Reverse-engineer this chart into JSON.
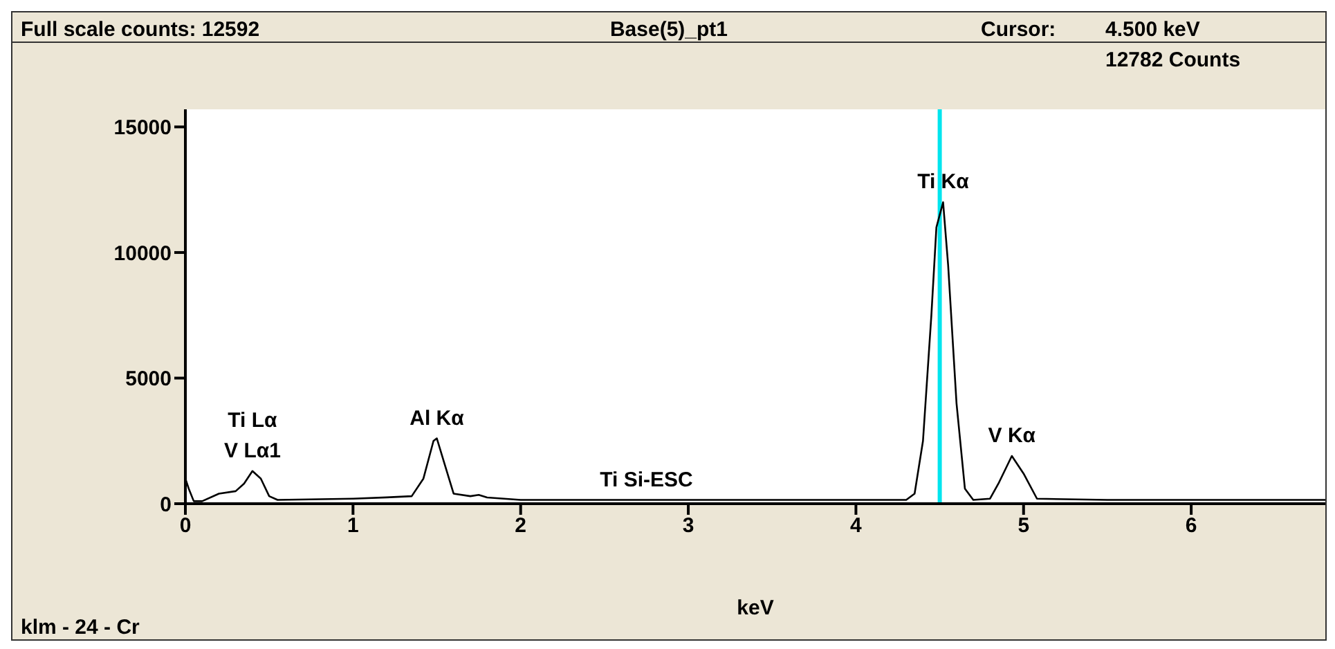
{
  "chart_data": {
    "type": "line",
    "title": "Base(5)_pt1",
    "xlabel": "keV",
    "x": [
      0,
      0.02,
      0.05,
      0.1,
      0.2,
      0.3,
      0.35,
      0.4,
      0.45,
      0.5,
      0.55,
      1.0,
      1.2,
      1.35,
      1.42,
      1.48,
      1.5,
      1.55,
      1.6,
      1.7,
      1.75,
      1.8,
      2.0,
      2.5,
      3.0,
      4.3,
      4.35,
      4.4,
      4.45,
      4.48,
      4.52,
      4.55,
      4.6,
      4.65,
      4.7,
      4.8,
      4.85,
      4.93,
      5.0,
      5.08,
      5.5,
      6.8
    ],
    "series": [
      {
        "color": "#000000",
        "values": [
          1000,
          600,
          100,
          100,
          400,
          500,
          800,
          1300,
          1000,
          300,
          150,
          200,
          250,
          300,
          1000,
          2500,
          2600,
          1500,
          400,
          300,
          350,
          250,
          150,
          150,
          150,
          150,
          400,
          2500,
          7500,
          11000,
          12000,
          9500,
          4000,
          600,
          150,
          200,
          800,
          1900,
          1200,
          200,
          150,
          150
        ]
      }
    ],
    "xlim": [
      0,
      6.8
    ],
    "xticks": [
      0,
      1,
      2,
      3,
      4,
      5,
      6
    ],
    "ylim": [
      0,
      15700
    ],
    "yticks": [
      0,
      5000,
      10000,
      15000
    ],
    "ref_lines": [
      {
        "axis": "x",
        "value": 4.5,
        "color": "#00e5ee"
      }
    ],
    "annotations": [
      "Full scale counts: 12592",
      "Cursor:",
      "4.500 keV",
      "12782 Counts",
      "klm - 24 - Cr",
      {
        "text": "Ti Lα",
        "x": 0.4,
        "y": 1300
      },
      {
        "text": "V Lα1",
        "x": 0.4,
        "y": 1300
      },
      {
        "text": "Al Kα",
        "x": 1.5,
        "y": 2600
      },
      {
        "text": "Ti Si-ESC",
        "x": 2.75,
        "y": 150
      },
      {
        "text": "Ti Kα",
        "x": 4.52,
        "y": 12000
      },
      {
        "text": "V Kα",
        "x": 4.93,
        "y": 1900
      }
    ]
  }
}
